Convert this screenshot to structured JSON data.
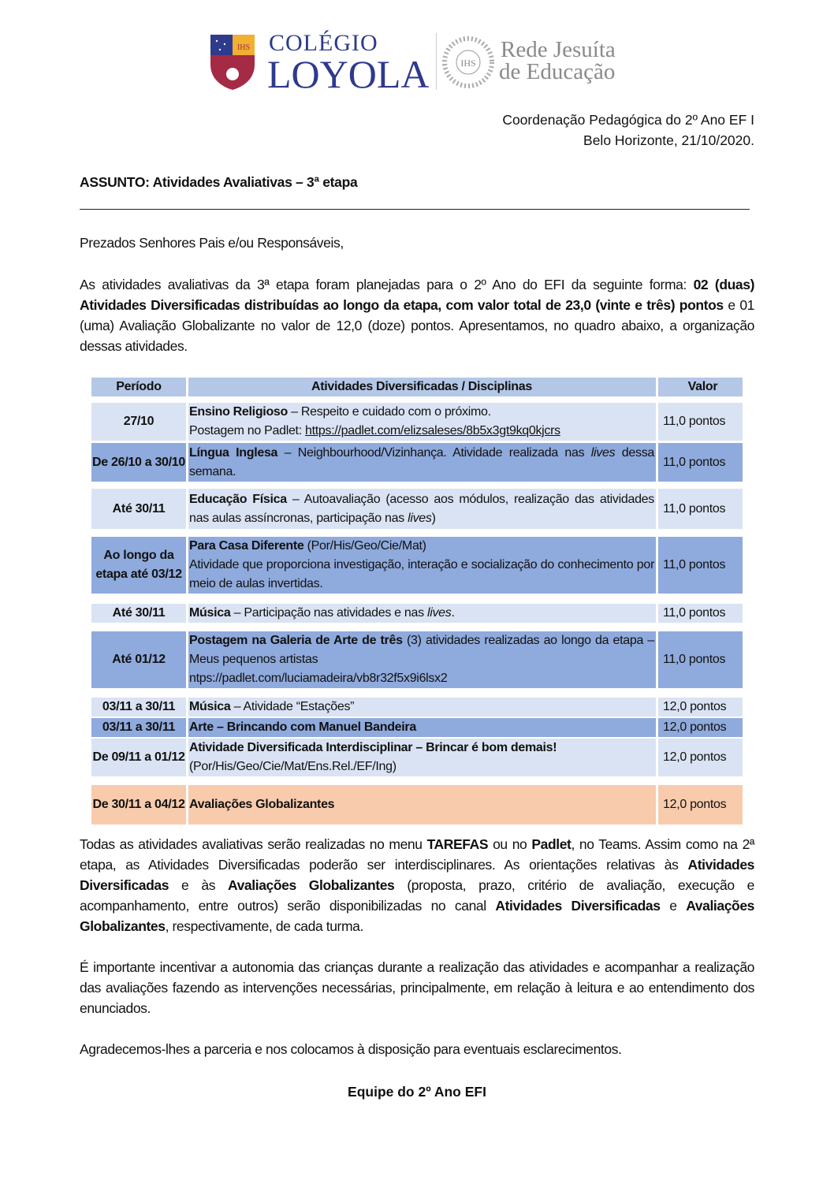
{
  "logo": {
    "school_line1": "COLÉGIO",
    "school_line2": "LOYOLA",
    "shield_text": "IHS",
    "network_line1": "Rede Jesuíta",
    "network_line2": "de Educação",
    "colors": {
      "blue": "#2e3a8c",
      "red": "#a52a45",
      "gold": "#f0b030"
    }
  },
  "header": {
    "department": "Coordenação Pedagógica do 2º Ano EF I",
    "place_date": "Belo Horizonte, 21/10/2020."
  },
  "subject": "ASSUNTO: Atividades Avaliativas – 3ª etapa",
  "greeting": "Prezados Senhores Pais e/ou Responsáveis,",
  "intro": [
    {
      "t": "As atividades avaliativas da 3ª etapa foram planejadas para o 2º Ano do EFI da seguinte forma: "
    },
    {
      "t": "02 (duas) Atividades Diversificadas distribuídas ao longo da etapa, com valor total de 23,0 (vinte e três) pontos",
      "b": true
    },
    {
      "t": " e 01 (uma) Avaliação Globalizante no valor de 12,0 (doze) pontos. Apresentamos, no quadro abaixo, a organização dessas atividades."
    }
  ],
  "table": {
    "headers": [
      "Período",
      "Atividades Diversificadas / Disciplinas",
      "Valor"
    ],
    "colors": {
      "header": "#b4c7e7",
      "light": "#dae3f3",
      "medium": "#8faadc",
      "highlight": "#f8cbad"
    },
    "rows": [
      {
        "style": "light",
        "period": "27/10",
        "value": "11,0 pontos",
        "lines": [
          [
            {
              "t": "Ensino Religioso",
              "b": true
            },
            {
              "t": " – Respeito e cuidado com o próximo."
            }
          ],
          [
            {
              "t": " Postagem no Padlet:  "
            },
            {
              "t": "https://padlet.com/elizsaleses/8b5x3gt9kq0kjcrs",
              "u": true
            }
          ]
        ]
      },
      {
        "style": "med",
        "period": "De 26/10 a 30/10",
        "value": "11,0 pontos",
        "lines": [
          [
            {
              "t": "Língua Inglesa",
              "b": true
            },
            {
              "t": " – Neighbourhood/Vizinhança. Atividade realizada nas "
            },
            {
              "t": "lives",
              "i": true
            },
            {
              "t": " dessa semana."
            }
          ]
        ]
      },
      {
        "style": "light",
        "period": "Até 30/11",
        "value": "11,0 pontos",
        "lines": [
          [
            {
              "t": "Educação Física",
              "b": true
            },
            {
              "t": " – Autoavaliação (acesso aos módulos, realização das atividades nas aulas assíncronas, participação nas "
            },
            {
              "t": "lives",
              "i": true
            },
            {
              "t": ")"
            }
          ]
        ]
      },
      {
        "style": "med",
        "period": "Ao longo da etapa até 03/12",
        "value": "11,0 pontos",
        "lines": [
          [
            {
              "t": "Para Casa Diferente",
              "b": true
            },
            {
              "t": " (Por/His/Geo/Cie/Mat)"
            }
          ],
          [
            {
              "t": "Atividade que proporciona investigação, interação e socialização do conhecimento por meio de aulas invertidas."
            }
          ]
        ]
      },
      {
        "style": "light",
        "period": "Até 30/11",
        "value": "11,0 pontos",
        "lines": [
          [
            {
              "t": "Música",
              "b": true
            },
            {
              "t": " – Participação nas atividades e nas "
            },
            {
              "t": "lives",
              "i": true
            },
            {
              "t": "."
            }
          ]
        ]
      },
      {
        "style": "med",
        "period": "Até 01/12",
        "value": "11,0 pontos",
        "lines": [
          [
            {
              "t": "Postagem na Galeria de Arte de três",
              "b": true
            },
            {
              "t": " (3) atividades realizadas ao longo da etapa – Meus pequenos artistas"
            }
          ],
          [
            {
              "t": "ntps://padlet.com/luciamadeira/vb8r32f5x9i6lsx2"
            }
          ]
        ]
      },
      {
        "style": "light",
        "period": "03/11 a 30/11",
        "value": "12,0 pontos",
        "lines": [
          [
            {
              "t": "Música",
              "b": true
            },
            {
              "t": " – Atividade “Estações”"
            }
          ]
        ]
      },
      {
        "style": "med",
        "period": "03/11 a 30/11",
        "value": "12,0 pontos",
        "lines": [
          [
            {
              "t": "Arte – Brincando com Manuel Bandeira",
              "b": true
            }
          ]
        ]
      },
      {
        "style": "light",
        "period": "De 09/11 a 01/12",
        "value": "12,0 pontos",
        "lines": [
          [
            {
              "t": "Atividade Diversificada Interdisciplinar – Brincar é bom demais!",
              "b": true
            }
          ],
          [
            {
              "t": "(Por/His/Geo/Cie/Mat/Ens.Rel./EF/Ing)"
            }
          ]
        ]
      },
      {
        "style": "org",
        "period": "De 30/11 a 04/12",
        "value": "12,0 pontos",
        "lines": [
          [
            {
              "t": "Avaliações Globalizantes",
              "b": true
            }
          ]
        ]
      }
    ]
  },
  "para2": [
    {
      "t": "Todas as atividades avaliativas serão realizadas no menu "
    },
    {
      "t": "TAREFAS",
      "b": true
    },
    {
      "t": " ou no "
    },
    {
      "t": "Padlet",
      "b": true
    },
    {
      "t": ", no Teams. Assim como na 2ª etapa, as Atividades Diversificadas poderão ser interdisciplinares. As orientações relativas às "
    },
    {
      "t": "Atividades Diversificadas",
      "b": true
    },
    {
      "t": " e às "
    },
    {
      "t": "Avaliações Globalizantes",
      "b": true
    },
    {
      "t": " (proposta, prazo, critério de avaliação, execução e acompanhamento, entre outros) serão disponibilizadas no canal "
    },
    {
      "t": "Atividades Diversificadas",
      "b": true
    },
    {
      "t": " e "
    },
    {
      "t": "Avaliações Globalizantes",
      "b": true
    },
    {
      "t": ", respectivamente, de cada turma."
    }
  ],
  "para3": "É importante incentivar a autonomia das crianças durante a realização das atividades e acompanhar a realização das avaliações fazendo as intervenções necessárias, principalmente, em relação à leitura e ao entendimento dos enunciados.",
  "para4": "Agradecemos-lhes a parceria e nos colocamos à disposição para eventuais esclarecimentos.",
  "signature": "Equipe do 2º Ano EFI"
}
